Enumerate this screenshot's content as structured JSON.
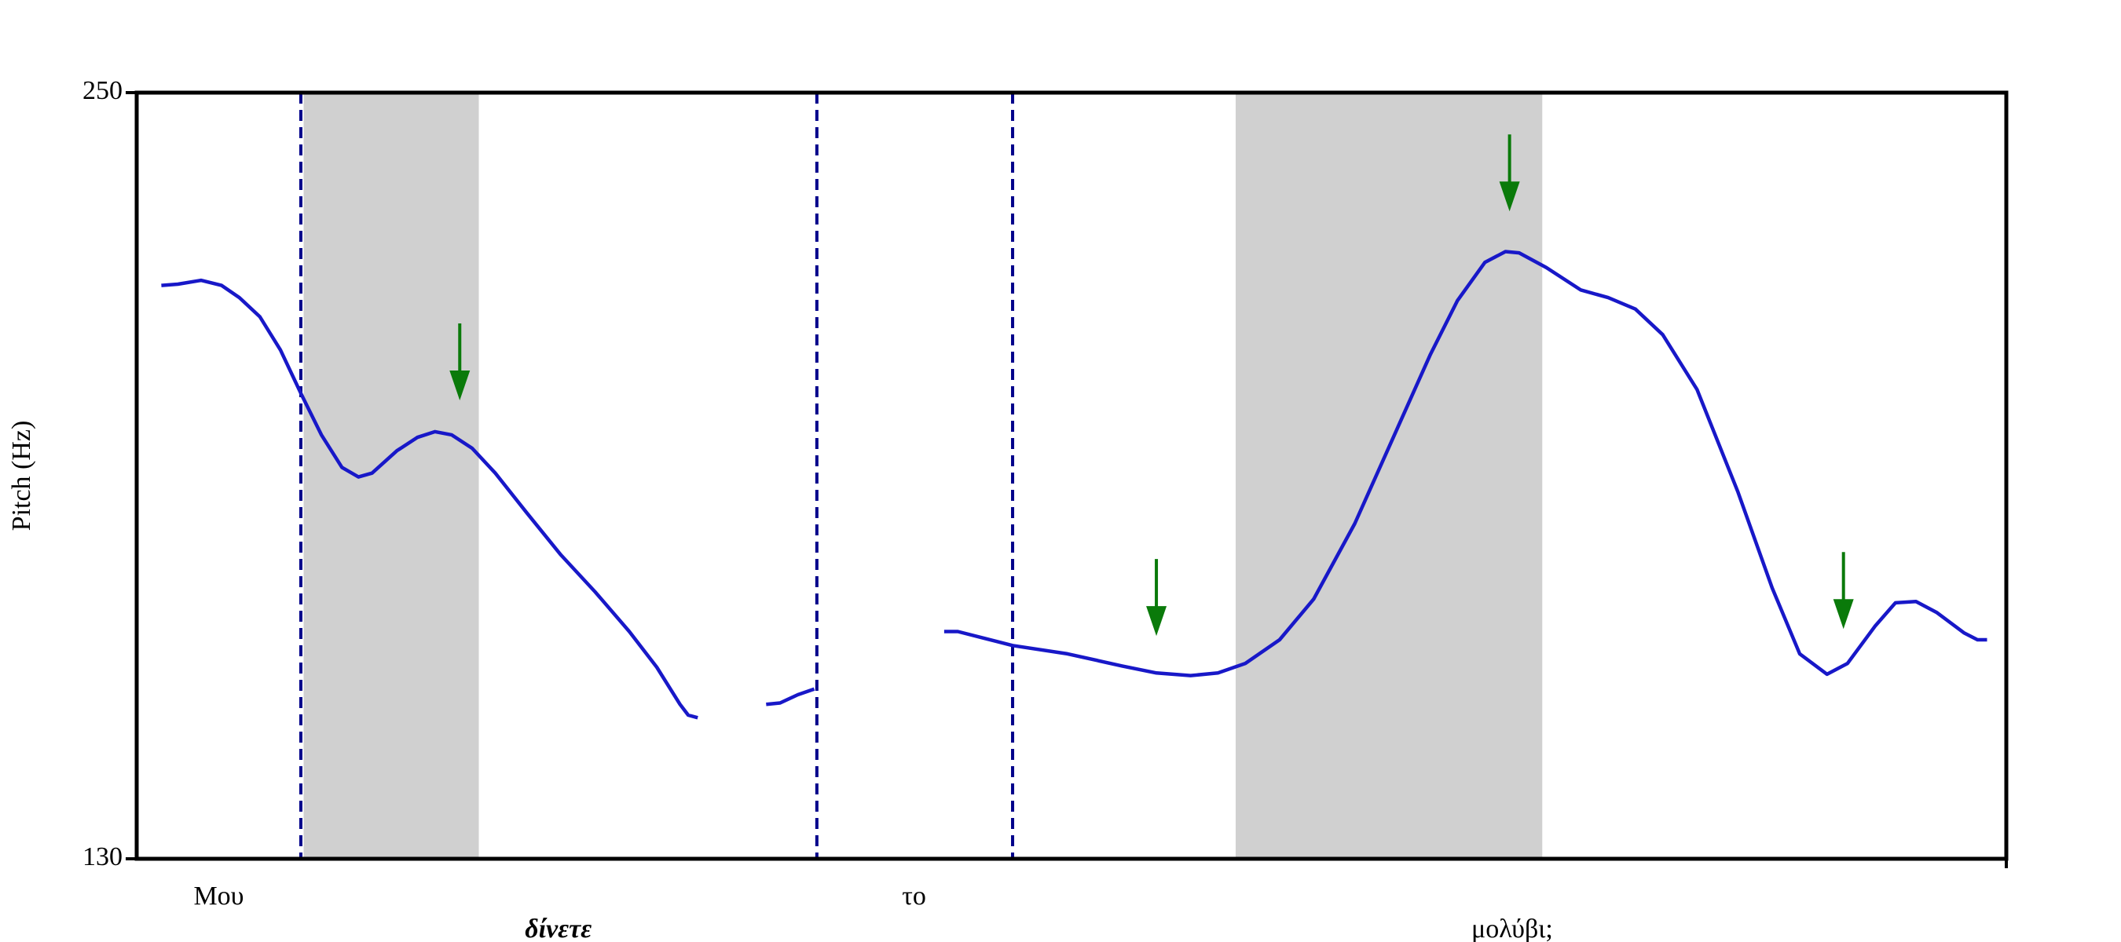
{
  "chart_data": {
    "type": "line",
    "y_label": "Pitch (Hz)",
    "xlim": [
      0,
      100
    ],
    "ylim": [
      130,
      250
    ],
    "yticks": [
      130,
      250
    ],
    "color": "#1818c8",
    "x": [
      1.32,
      2.2,
      3.44,
      4.54,
      5.49,
      6.59,
      7.69,
      8.78,
      9.88,
      10.98,
      11.86,
      12.59,
      13.91,
      15.01,
      15.96,
      16.84,
      17.94,
      19.18,
      20.86,
      22.69,
      24.52,
      26.35,
      27.82,
      29.06,
      29.5,
      30.01,
      null,
      33.67,
      34.41,
      35.36,
      36.24,
      null,
      43.19,
      43.92,
      45.39,
      46.85,
      49.78,
      52.71,
      54.54,
      56.37,
      57.83,
      59.3,
      61.13,
      62.96,
      65.15,
      67.35,
      69.18,
      70.64,
      72.11,
      73.21,
      73.94,
      75.4,
      77.23,
      78.7,
      80.16,
      81.62,
      83.46,
      85.65,
      87.48,
      88.95,
      90.41,
      91.51,
      92.97,
      94.07,
      95.17,
      96.27,
      97.73,
      98.46,
      98.97
    ],
    "values": [
      219.8,
      220.0,
      220.6,
      219.8,
      217.9,
      214.9,
      209.7,
      202.9,
      196.4,
      191.3,
      189.8,
      190.4,
      193.9,
      196.0,
      196.9,
      196.4,
      194.3,
      190.4,
      184.2,
      177.6,
      171.8,
      165.6,
      160.0,
      154.2,
      152.5,
      152.1,
      null,
      154.2,
      154.4,
      155.7,
      156.6,
      null,
      165.6,
      165.6,
      164.5,
      163.4,
      162.1,
      160.2,
      159.1,
      158.7,
      159.1,
      160.6,
      164.3,
      170.7,
      182.5,
      196.9,
      208.9,
      217.4,
      223.4,
      225.1,
      224.9,
      222.6,
      219.1,
      217.9,
      216.1,
      212.1,
      203.5,
      187.4,
      172.4,
      162.1,
      158.9,
      160.6,
      166.4,
      170.1,
      170.3,
      168.6,
      165.4,
      164.3,
      164.3
    ],
    "shaded": {
      "color": "#d0d0d0",
      "ranges": [
        [
          8.93,
          18.3
        ],
        [
          58.78,
          75.18
        ]
      ]
    },
    "boundaries": {
      "color": "#00008b",
      "x": [
        8.78,
        36.38,
        46.85
      ]
    },
    "arrows": {
      "color": "#0a7a0a",
      "x": [
        17.28,
        54.54,
        73.43,
        91.29
      ],
      "y": [
        201.8,
        164.9,
        231.4,
        166.0
      ]
    },
    "words": [
      {
        "text": "Μου",
        "x": 4.39
      },
      {
        "text": "δίνετε",
        "x": 22.55,
        "style": "bold-italic"
      },
      {
        "text": "το",
        "x": 41.58
      },
      {
        "text": "μολύβι;",
        "x": 73.57
      }
    ]
  }
}
